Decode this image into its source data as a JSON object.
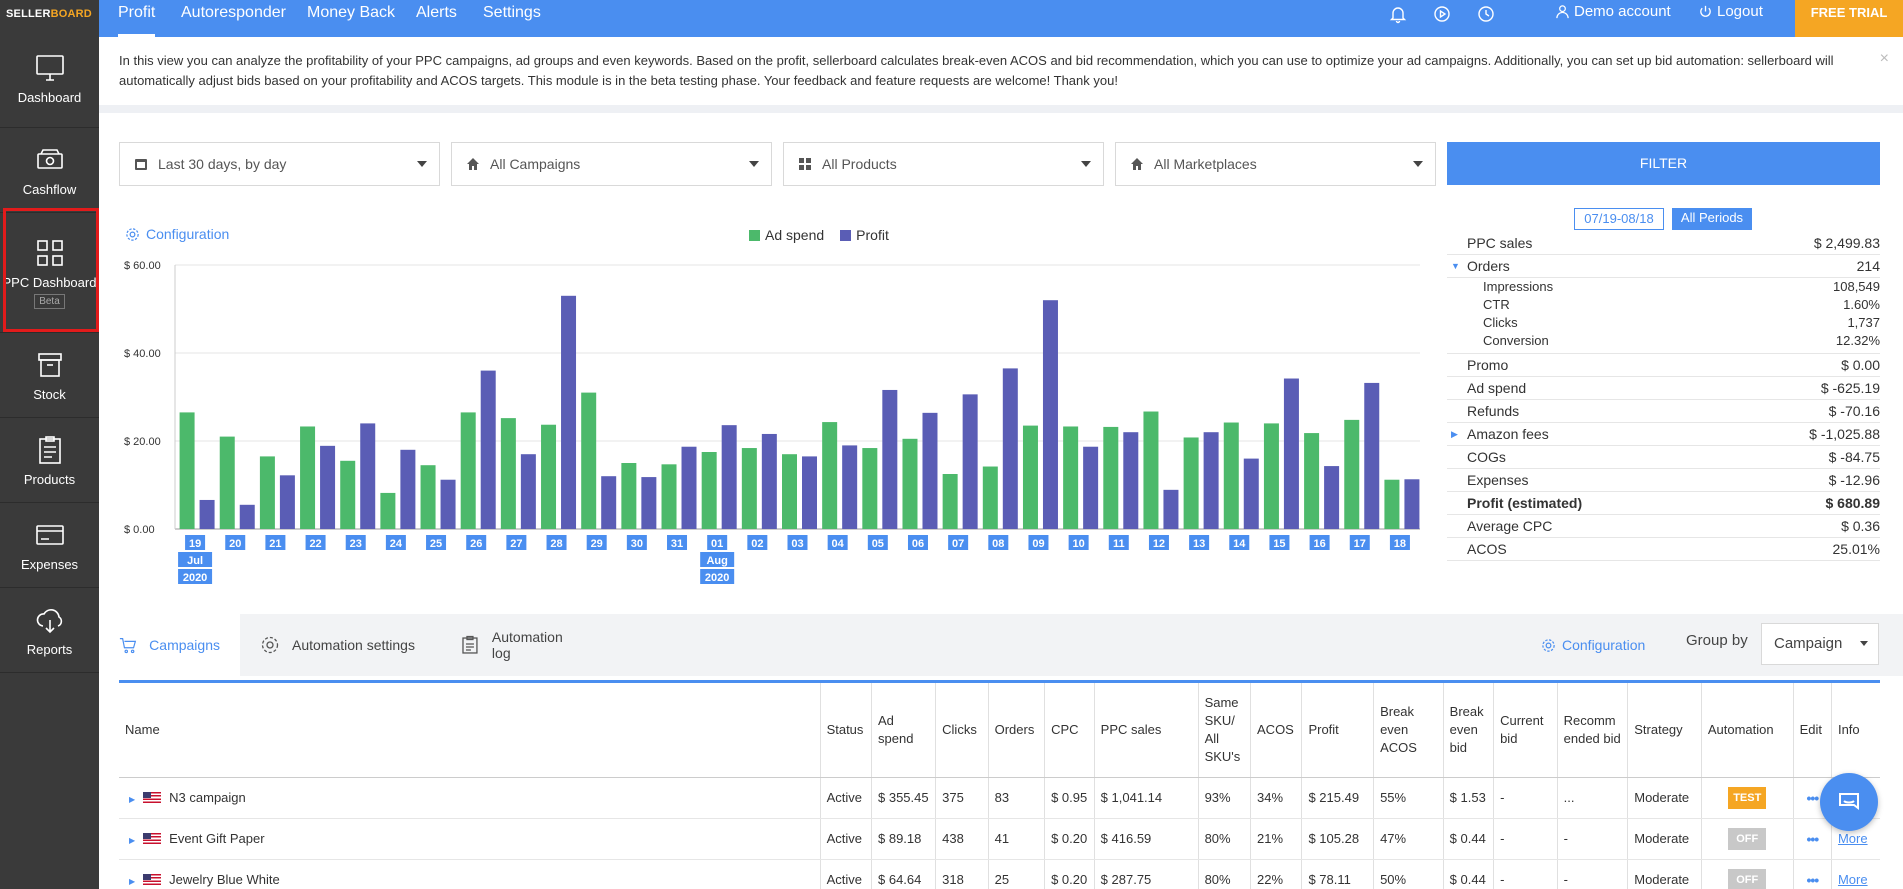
{
  "app": {
    "logo_main": "SELLER",
    "logo_accent": "BOARD"
  },
  "sidebar": {
    "items": [
      {
        "label": "Dashboard",
        "icon": "monitor-icon"
      },
      {
        "label": "Cashflow",
        "icon": "cash-icon"
      },
      {
        "label": "PPC Dashboard",
        "icon": "grid-icon",
        "badge": "Beta"
      },
      {
        "label": "Stock",
        "icon": "box-icon"
      },
      {
        "label": "Products",
        "icon": "clipboard-icon"
      },
      {
        "label": "Expenses",
        "icon": "card-icon"
      },
      {
        "label": "Reports",
        "icon": "cloud-download-icon"
      }
    ]
  },
  "topbar": {
    "tabs": [
      "Profit",
      "Autoresponder",
      "Money Back",
      "Alerts",
      "Settings"
    ],
    "user": "Demo account",
    "logout": "Logout",
    "cta": "FREE TRIAL"
  },
  "info": {
    "text": "In this view you can analyze the profitability of your PPC campaigns, ad groups and even keywords. Based on the profit, sellerboard calculates break-even ACOS and bid recommendation, which you can use to optimize your ad campaigns. Additionally, you can set up bid automation: sellerboard will automatically adjust bids based on your profitability and ACOS targets. This module is in the beta testing phase. Your feedback and feature requests are welcome! Thank you!",
    "close": "×"
  },
  "filters": {
    "period": "Last 30 days, by day",
    "campaigns": "All Campaigns",
    "products": "All Products",
    "marketplaces": "All Marketplaces",
    "button": "FILTER"
  },
  "chart_header": {
    "config": "Configuration"
  },
  "chart_data": {
    "type": "bar",
    "ylim": [
      0,
      60
    ],
    "yticks": [
      "$ 0.00",
      "$ 20.00",
      "$ 40.00",
      "$ 60.00"
    ],
    "categories": [
      "19",
      "20",
      "21",
      "22",
      "23",
      "24",
      "25",
      "26",
      "27",
      "28",
      "29",
      "30",
      "31",
      "01",
      "02",
      "03",
      "04",
      "05",
      "06",
      "07",
      "08",
      "09",
      "10",
      "11",
      "12",
      "13",
      "14",
      "15",
      "16",
      "17",
      "18"
    ],
    "month_labels": [
      {
        "index": 0,
        "month": "Jul",
        "year": "2020"
      },
      {
        "index": 13,
        "month": "Aug",
        "year": "2020"
      }
    ],
    "series": [
      {
        "name": "Ad spend",
        "color": "#4cb96b",
        "values": [
          26.5,
          21,
          16.5,
          23.3,
          15.5,
          8.2,
          14.5,
          26.5,
          25.2,
          23.7,
          31,
          15,
          14.7,
          17.5,
          18.4,
          17,
          24.3,
          18.4,
          20.5,
          12.5,
          14.2,
          23.5,
          23.3,
          23.2,
          26.7,
          20.8,
          24.2,
          24,
          21.8,
          24.8,
          11.2
        ]
      },
      {
        "name": "Profit",
        "color": "#5a5db5",
        "values": [
          6.6,
          5.5,
          12.2,
          18.9,
          24,
          18,
          11.2,
          36,
          17,
          53,
          12,
          11.8,
          18.7,
          23.6,
          21.6,
          16.5,
          19,
          31.6,
          26.4,
          30.6,
          36.5,
          52,
          18.7,
          22,
          8.9,
          22,
          16,
          34.2,
          14.3,
          33.2,
          11.3
        ]
      }
    ]
  },
  "summary": {
    "period_button": "07/19-08/18",
    "all_periods": "All Periods",
    "rows": [
      {
        "label": "PPC sales",
        "value": "$ 2,499.83"
      },
      {
        "label": "Orders",
        "value": "214",
        "expanded": true
      },
      {
        "label": "Impressions",
        "value": "108,549",
        "sub": true
      },
      {
        "label": "CTR",
        "value": "1.60%",
        "sub": true
      },
      {
        "label": "Clicks",
        "value": "1,737",
        "sub": true
      },
      {
        "label": "Conversion",
        "value": "12.32%",
        "sub": true
      },
      {
        "label": "Promo",
        "value": "$ 0.00"
      },
      {
        "label": "Ad spend",
        "value": "$ -625.19"
      },
      {
        "label": "Refunds",
        "value": "$ -70.16"
      },
      {
        "label": "Amazon fees",
        "value": "$ -1,025.88",
        "collapsed": true
      },
      {
        "label": "COGs",
        "value": "$ -84.75"
      },
      {
        "label": "Expenses",
        "value": "$ -12.96"
      },
      {
        "label": "Profit (estimated)",
        "value": "$ 680.89",
        "bold": true
      },
      {
        "label": "Average CPC",
        "value": "$ 0.36"
      },
      {
        "label": "ACOS",
        "value": "25.01%"
      }
    ]
  },
  "tabs": {
    "campaigns": "Campaigns",
    "automation_settings": "Automation settings",
    "automation_log": "Automation log",
    "config": "Configuration",
    "group_by_label": "Group by",
    "group_by_value": "Campaign"
  },
  "table": {
    "headers": [
      "Name",
      "Status",
      "Ad spend",
      "Clicks",
      "Orders",
      "CPC",
      "PPC sales",
      "Same SKU/ All SKU's",
      "ACOS",
      "Profit",
      "Break even ACOS",
      "Break even bid",
      "Current bid",
      "Recomm ended bid",
      "Strategy",
      "Automation",
      "Edit",
      "Info"
    ],
    "rows": [
      {
        "name": "N3 campaign",
        "status": "Active",
        "ad_spend": "$ 355.45",
        "clicks": "375",
        "orders": "83",
        "cpc": "$ 0.95",
        "ppc_sales": "$ 1,041.14",
        "same_sku": "93%",
        "acos": "34%",
        "profit": "$ 215.49",
        "be_acos": "55%",
        "be_bid": "$ 1.53",
        "current_bid": "-",
        "rec_bid": "...",
        "strategy": "Moderate",
        "automation": "TEST",
        "edit": "•••",
        "info": "More"
      },
      {
        "name": "Event Gift Paper",
        "status": "Active",
        "ad_spend": "$ 89.18",
        "clicks": "438",
        "orders": "41",
        "cpc": "$ 0.20",
        "ppc_sales": "$ 416.59",
        "same_sku": "80%",
        "acos": "21%",
        "profit": "$ 105.28",
        "be_acos": "47%",
        "be_bid": "$ 0.44",
        "current_bid": "-",
        "rec_bid": "-",
        "strategy": "Moderate",
        "automation": "OFF",
        "edit": "•••",
        "info": "More"
      },
      {
        "name": "Jewelry Blue White",
        "status": "Active",
        "ad_spend": "$ 64.64",
        "clicks": "318",
        "orders": "25",
        "cpc": "$ 0.20",
        "ppc_sales": "$ 287.75",
        "same_sku": "80%",
        "acos": "22%",
        "profit": "$ 78.11",
        "be_acos": "50%",
        "be_bid": "$ 0.44",
        "current_bid": "-",
        "rec_bid": "-",
        "strategy": "Moderate",
        "automation": "OFF",
        "edit": "•••",
        "info": "More"
      }
    ]
  }
}
